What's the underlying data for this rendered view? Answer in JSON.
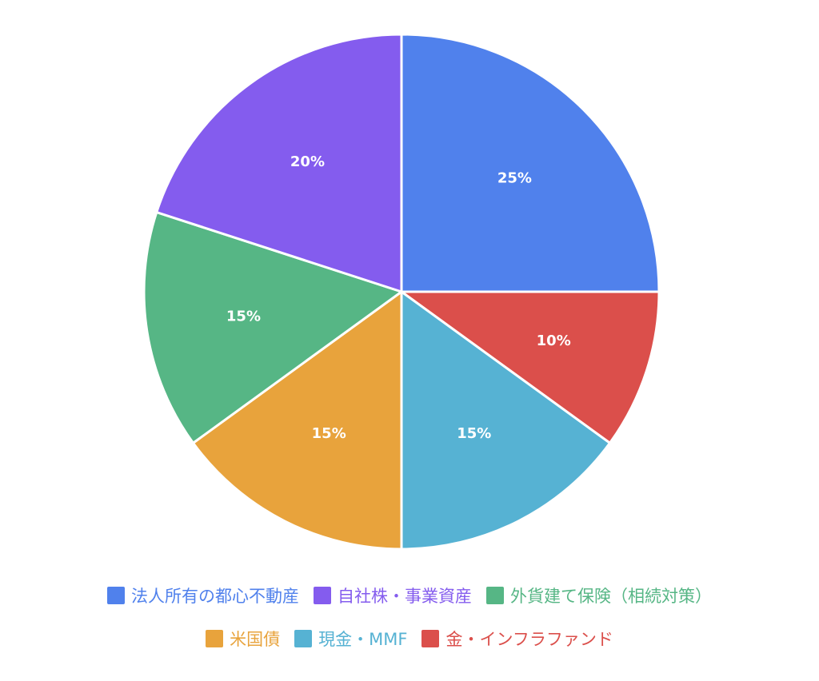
{
  "chart_data": {
    "type": "pie",
    "slices": [
      {
        "label": "法人所有の都心不動産",
        "value": 25,
        "value_label": "25%",
        "color": "#5081EC"
      },
      {
        "label": "金・インフラファンド",
        "value": 10,
        "value_label": "10%",
        "color": "#DB4F4B"
      },
      {
        "label": "現金・MMF",
        "value": 15,
        "value_label": "15%",
        "color": "#56B2D3"
      },
      {
        "label": "米国債",
        "value": 15,
        "value_label": "15%",
        "color": "#E8A33C"
      },
      {
        "label": "外貨建て保険（相続対策）",
        "value": 15,
        "value_label": "15%",
        "color": "#56B685"
      },
      {
        "label": "自社株・事業資産",
        "value": 20,
        "value_label": "20%",
        "color": "#845CEE"
      }
    ],
    "legend": {
      "placement": "bottom",
      "rows": [
        [
          "法人所有の都心不動産",
          "自社株・事業資産",
          "外貨建て保険（相続対策）"
        ],
        [
          "米国債",
          "現金・MMF",
          "金・インフラファンド"
        ]
      ]
    }
  }
}
